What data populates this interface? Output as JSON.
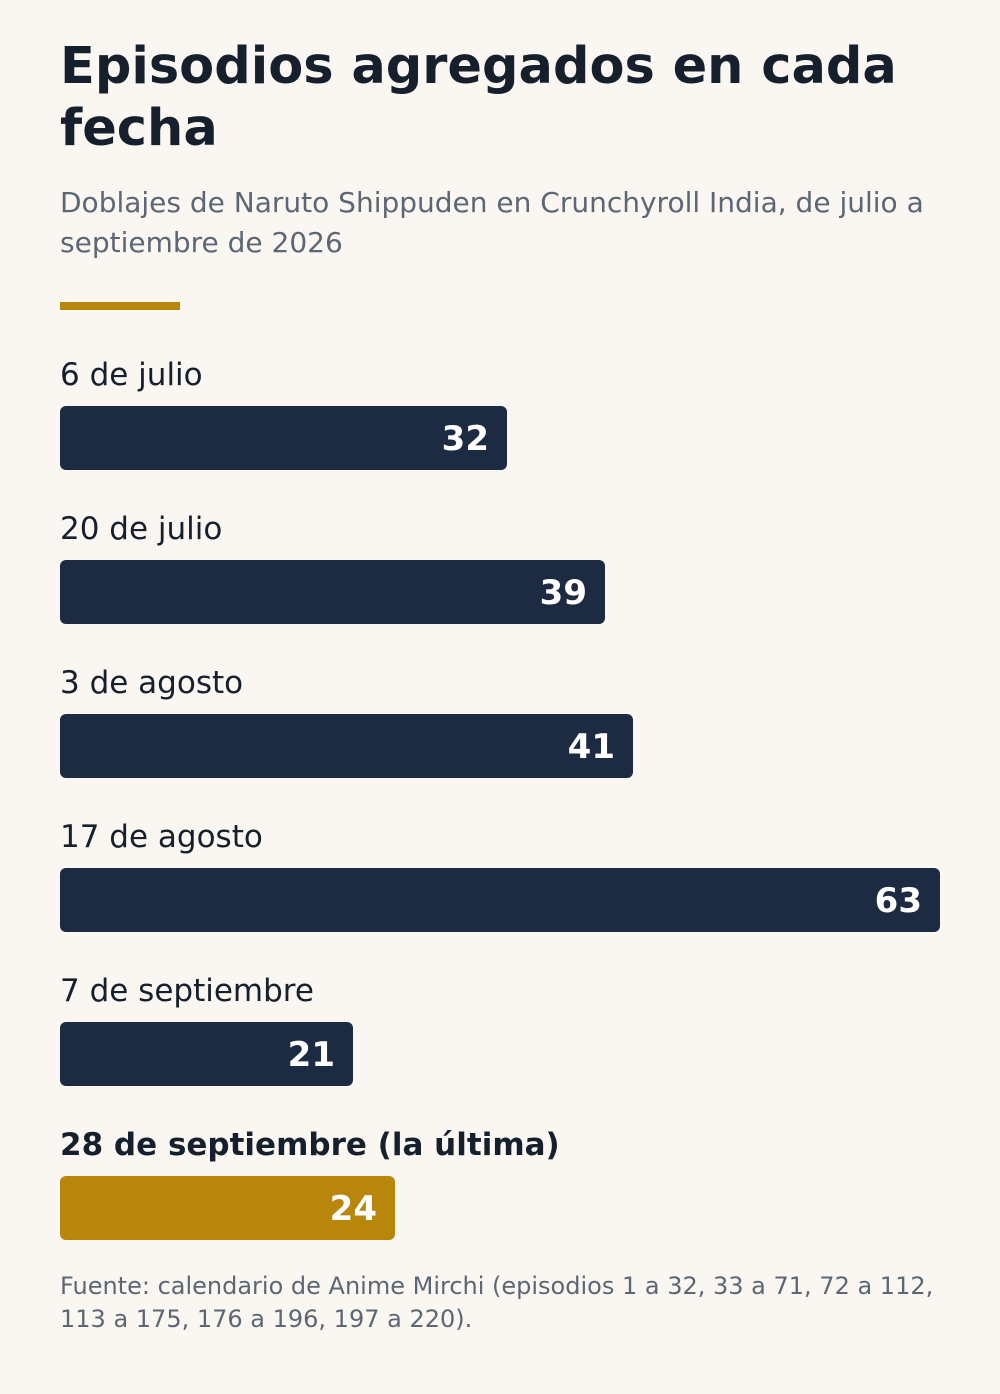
{
  "title": "Episodios agregados en cada fecha",
  "subtitle": "Doblajes de Naruto Shippuden en Crunchyroll India, de julio a septiembre de 2026",
  "source": "Fuente: calendario de Anime Mirchi (episodios 1 a 32, 33 a 71, 72 a 112, 113 a 175, 176 a 196, 197 a 220).",
  "colors": {
    "bar": "#1c2a42",
    "highlight": "#b8860b",
    "accent_rule": "#b8860b"
  },
  "chart_data": {
    "type": "bar",
    "orientation": "horizontal",
    "categories": [
      "6 de julio",
      "20 de julio",
      "3 de agosto",
      "17 de agosto",
      "7 de septiembre",
      "28 de septiembre (la última)"
    ],
    "values": [
      32,
      39,
      41,
      63,
      21,
      24
    ],
    "highlighted": [
      "28 de septiembre (la última)"
    ],
    "xlim": [
      0,
      63
    ],
    "grid": false,
    "legend": "none"
  }
}
